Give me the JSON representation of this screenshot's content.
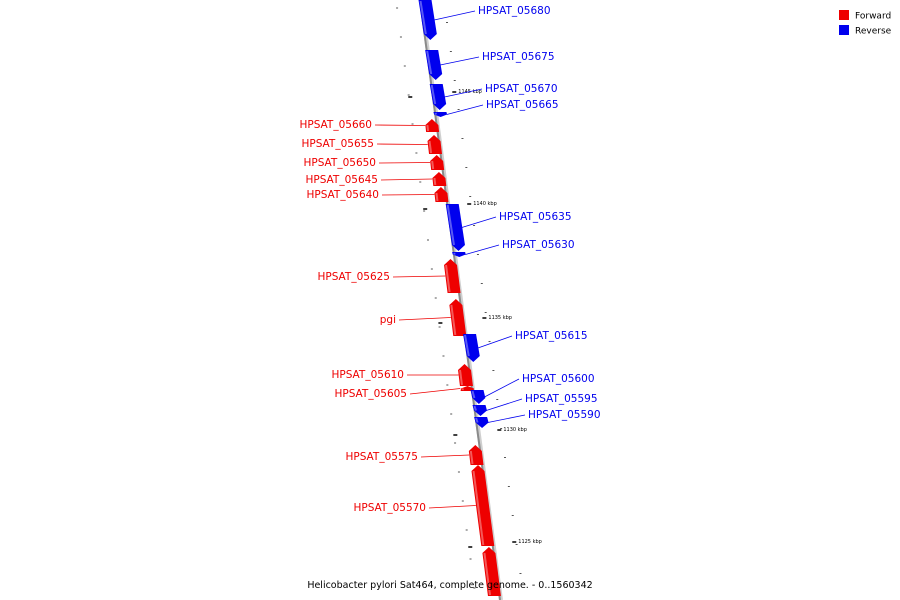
{
  "legend": [
    {
      "label": "Forward",
      "color": "#ee0000"
    },
    {
      "label": "Reverse",
      "color": "#0000ee"
    }
  ],
  "colors": {
    "forward": "#ee0000",
    "reverse": "#0000ee",
    "backbone": "#8a8a8a"
  },
  "caption": "Helicobacter pylori Sat464, complete genome. - 0..1560342",
  "scale": [
    {
      "text": "1145 kbp"
    },
    {
      "text": "1140 kbp"
    },
    {
      "text": "1135 kbp"
    },
    {
      "text": "1130 kbp"
    },
    {
      "text": "1125 kbp"
    }
  ],
  "genes": [
    {
      "name": "HPSAT_05680",
      "strand": "reverse"
    },
    {
      "name": "HPSAT_05675",
      "strand": "reverse"
    },
    {
      "name": "HPSAT_05670",
      "strand": "reverse"
    },
    {
      "name": "HPSAT_05665",
      "strand": "reverse"
    },
    {
      "name": "HPSAT_05660",
      "strand": "forward"
    },
    {
      "name": "HPSAT_05655",
      "strand": "forward"
    },
    {
      "name": "HPSAT_05650",
      "strand": "forward"
    },
    {
      "name": "HPSAT_05645",
      "strand": "forward"
    },
    {
      "name": "HPSAT_05640",
      "strand": "forward"
    },
    {
      "name": "HPSAT_05635",
      "strand": "reverse"
    },
    {
      "name": "HPSAT_05630",
      "strand": "reverse"
    },
    {
      "name": "HPSAT_05625",
      "strand": "forward"
    },
    {
      "name": "pgi",
      "strand": "forward"
    },
    {
      "name": "HPSAT_05615",
      "strand": "reverse"
    },
    {
      "name": "HPSAT_05610",
      "strand": "forward"
    },
    {
      "name": "HPSAT_05605",
      "strand": "forward"
    },
    {
      "name": "HPSAT_05600",
      "strand": "reverse"
    },
    {
      "name": "HPSAT_05595",
      "strand": "reverse"
    },
    {
      "name": "HPSAT_05590",
      "strand": "reverse"
    },
    {
      "name": "HPSAT_05575",
      "strand": "forward"
    },
    {
      "name": "HPSAT_05570",
      "strand": "forward"
    }
  ]
}
